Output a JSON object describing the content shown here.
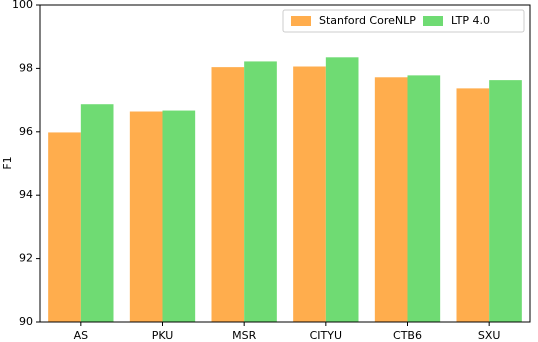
{
  "chart_data": {
    "type": "bar",
    "y_label": "F1",
    "categories": [
      "AS",
      "PKU",
      "MSR",
      "CITYU",
      "CTB6",
      "SXU"
    ],
    "series": [
      {
        "name": "Stanford CoreNLP",
        "color": "#ffad4d",
        "values": [
          95.98,
          96.64,
          98.04,
          98.06,
          97.72,
          97.37
        ]
      },
      {
        "name": "LTP 4.0",
        "color": "#6fdb73",
        "values": [
          96.87,
          96.67,
          98.22,
          98.35,
          97.78,
          97.63
        ]
      }
    ],
    "ylim": [
      90,
      100
    ],
    "yticks": [
      90,
      92,
      94,
      96,
      98,
      100
    ],
    "legend": "upper right"
  }
}
